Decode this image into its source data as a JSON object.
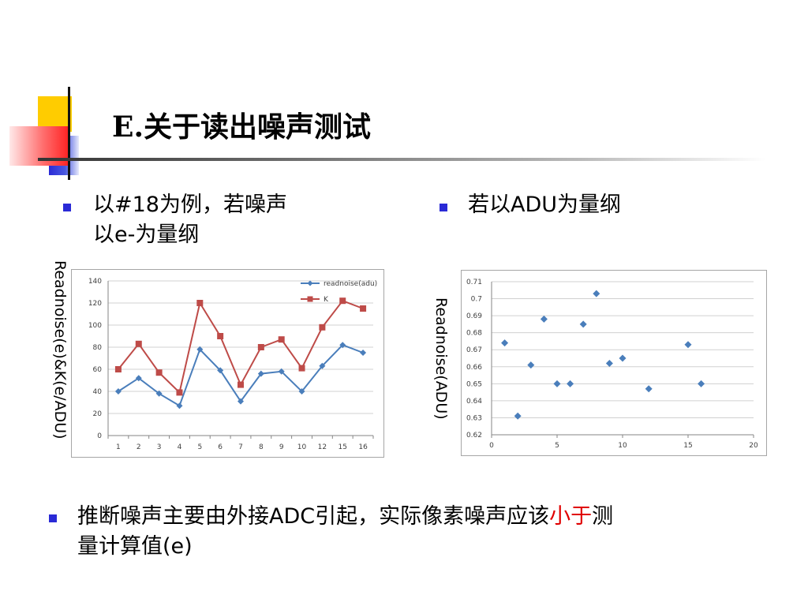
{
  "slide": {
    "title": "E.关于读出噪声测试",
    "bullet_left": [
      "以#18为例，若噪声",
      "以e-为量纲"
    ],
    "bullet_right": "若以ADU为量纲",
    "bottom_pre": "推断噪声主要由外接ADC引起，实际像素噪声应该",
    "bottom_highlight": "小于",
    "bottom_post1": "测",
    "bottom_post2": "量计算值(e)"
  },
  "colors": {
    "bullet": "#2a2ad6",
    "series_blue": "#4a7ebb",
    "series_red": "#be4b48",
    "highlight": "#e00000"
  },
  "chart_data": [
    {
      "type": "line",
      "ylabel": "Readnoise(e)&K(e/ADU)",
      "categories": [
        "1",
        "2",
        "3",
        "4",
        "5",
        "6",
        "7",
        "8",
        "9",
        "10",
        "12",
        "15",
        "16"
      ],
      "ylim": [
        0,
        140
      ],
      "yticks": [
        0,
        20,
        40,
        60,
        80,
        100,
        120,
        140
      ],
      "legend_position": "top-right",
      "grid": true,
      "series": [
        {
          "name": "readnoise(adu)",
          "color": "#4a7ebb",
          "marker": "diamond",
          "values": [
            40,
            52,
            38,
            27,
            78,
            59,
            31,
            56,
            58,
            40,
            63,
            82,
            75
          ]
        },
        {
          "name": "K",
          "color": "#be4b48",
          "marker": "square",
          "values": [
            60,
            83,
            57,
            39,
            120,
            90,
            46,
            80,
            87,
            61,
            98,
            122,
            115
          ]
        }
      ]
    },
    {
      "type": "scatter",
      "ylabel": "Readnoise(ADU)",
      "xlim": [
        0,
        20
      ],
      "xticks": [
        0,
        5,
        10,
        15,
        20
      ],
      "ylim": [
        0.62,
        0.71
      ],
      "yticks": [
        "0.62",
        "0.63",
        "0.64",
        "0.65",
        "0.66",
        "0.67",
        "0.68",
        "0.69",
        "0.7",
        "0.71"
      ],
      "grid": true,
      "color": "#4a7ebb",
      "x": [
        1,
        2,
        3,
        4,
        5,
        6,
        7,
        8,
        9,
        10,
        12,
        15,
        16
      ],
      "y": [
        0.674,
        0.631,
        0.661,
        0.688,
        0.65,
        0.65,
        0.685,
        0.703,
        0.662,
        0.665,
        0.647,
        0.673,
        0.65
      ]
    }
  ]
}
